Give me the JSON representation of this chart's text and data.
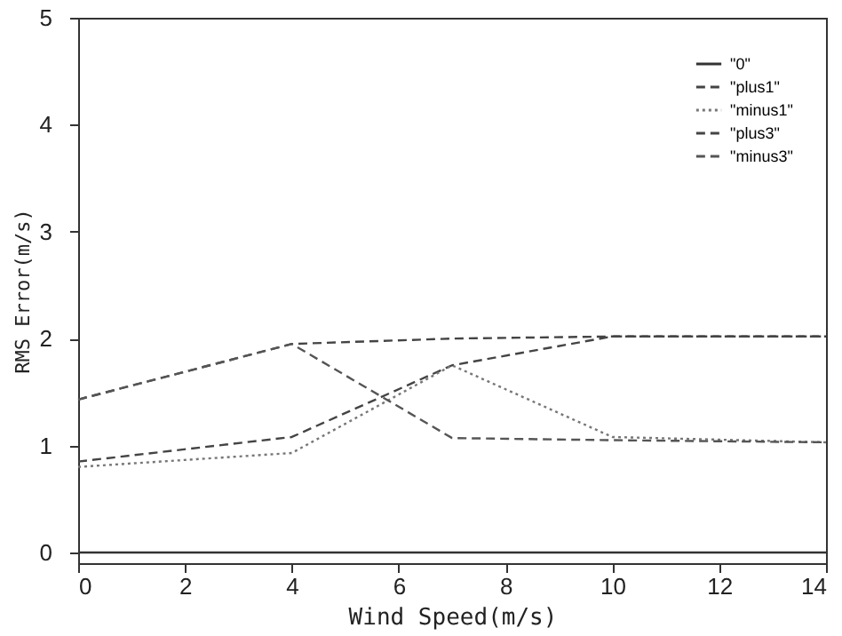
{
  "chart_data": {
    "type": "line",
    "xlabel": "Wind Speed(m/s)",
    "ylabel": "RMS Error(m/s)",
    "x": [
      0,
      4,
      7,
      10,
      14
    ],
    "series": [
      {
        "name": "\"0\"",
        "color": "#333333",
        "line_style": "solid",
        "values": [
          0,
          0,
          0,
          0,
          0
        ]
      },
      {
        "name": "\"plus1\"",
        "color": "#444444",
        "line_style": "dashed",
        "values": [
          0.85,
          1.08,
          1.75,
          2.02,
          2.02
        ]
      },
      {
        "name": "\"minus1\"",
        "color": "#777777",
        "line_style": "dotted",
        "values": [
          0.8,
          0.93,
          1.75,
          1.08,
          1.03
        ]
      },
      {
        "name": "\"plus3\"",
        "color": "#444444",
        "line_style": "dashed",
        "values": [
          1.43,
          1.95,
          2.0,
          2.02,
          2.02
        ]
      },
      {
        "name": "\"minus3\"",
        "color": "#555555",
        "line_style": "dashed",
        "values": [
          1.43,
          1.95,
          1.07,
          1.05,
          1.03
        ]
      }
    ],
    "xlim": [
      0,
      14
    ],
    "xticks": [
      0,
      2,
      4,
      6,
      8,
      10,
      12,
      14
    ],
    "ylim": [
      -0.1,
      5
    ],
    "yticks": [
      0,
      1,
      2,
      3,
      4,
      5
    ],
    "grid": false,
    "legend": "top right",
    "marker": "none"
  }
}
